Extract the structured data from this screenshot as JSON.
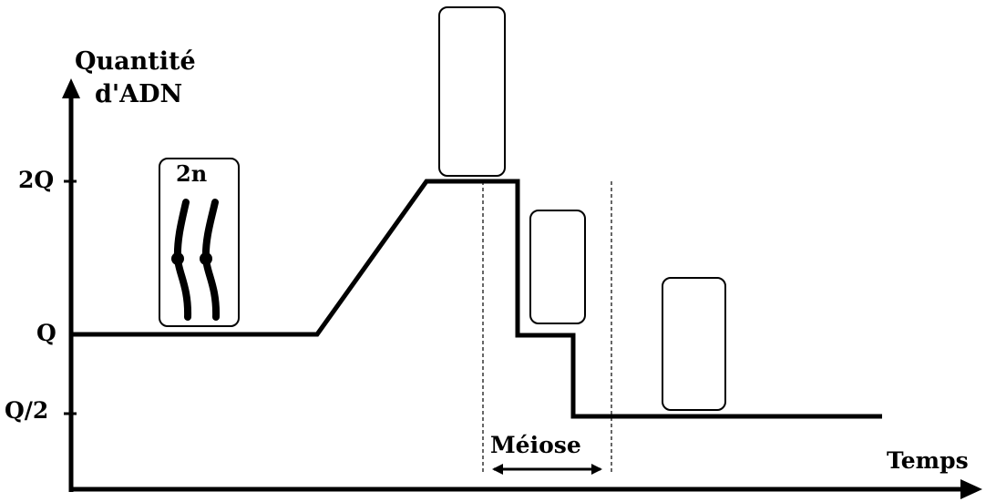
{
  "diagram": {
    "y_axis_title": [
      "Quantité",
      "d'ADN"
    ],
    "x_axis_title": "Temps",
    "tick_labels": {
      "q2": "2Q",
      "q": "Q",
      "q_half": "Q/2"
    },
    "first_box_label": "2n",
    "meiose_label": "Méiose",
    "curve_levels": [
      "Q",
      "2Q",
      "Q",
      "Q/2"
    ]
  }
}
